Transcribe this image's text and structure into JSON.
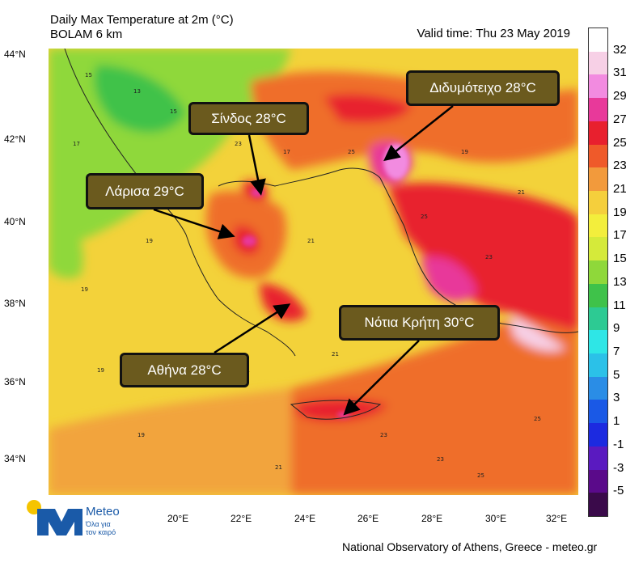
{
  "header": {
    "title_line1": "Daily Max Temperature at 2m (°C)",
    "title_line2": "BOLAM 6 km",
    "valid_time": "Valid time: Thu 23 May 2019"
  },
  "lat_labels": [
    "44°N",
    "42°N",
    "40°N",
    "38°N",
    "36°N",
    "34°N"
  ],
  "lon_labels": [
    "20°E",
    "22°E",
    "24°E",
    "26°E",
    "28°E",
    "30°E",
    "32°E"
  ],
  "colorbar": {
    "labels": [
      "32",
      "31",
      "29",
      "27",
      "25",
      "23",
      "21",
      "19",
      "17",
      "15",
      "13",
      "11",
      "9",
      "7",
      "5",
      "3",
      "1",
      "-1",
      "-3",
      "-5"
    ],
    "colors": [
      "#ffffff",
      "#f7d0e6",
      "#f28be0",
      "#e8399a",
      "#e8202e",
      "#ef5a2a",
      "#f29a3c",
      "#f5cf3c",
      "#f3ee3c",
      "#d5ea3a",
      "#8fd83a",
      "#3fc24a",
      "#2dca93",
      "#2ee6e6",
      "#2bc1e8",
      "#2a8de6",
      "#1a59e6",
      "#1c2ae0",
      "#5a1ac0",
      "#5a0a8a",
      "#3a0a4a"
    ]
  },
  "callouts": [
    {
      "label": "Διδυμότειχο 28°C"
    },
    {
      "label": "Σίνδος 28°C"
    },
    {
      "label": "Λάρισα 29°C"
    },
    {
      "label": "Νότια Κρήτη 30°C"
    },
    {
      "label": "Αθήνα 28°C"
    }
  ],
  "logo": {
    "name": "Meteo",
    "tagline_line1": "Όλα για",
    "tagline_line2": "τον καιρό"
  },
  "footer": "National Observatory of Athens, Greece - meteo.gr"
}
